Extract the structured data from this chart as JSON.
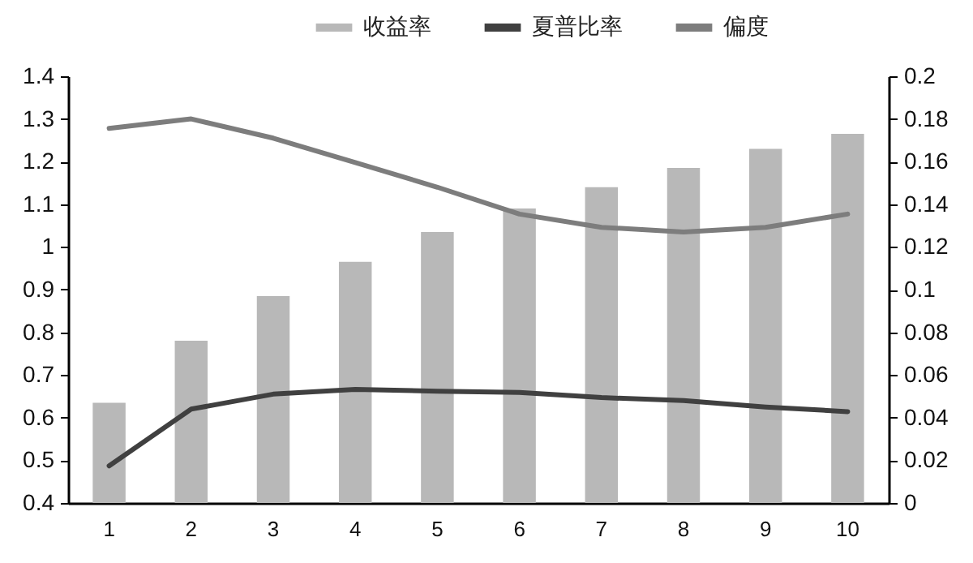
{
  "chart_data": {
    "type": "bar",
    "categories": [
      "1",
      "2",
      "3",
      "4",
      "5",
      "6",
      "7",
      "8",
      "9",
      "10"
    ],
    "series": [
      {
        "name": "收益率",
        "axis": "y2",
        "color": "#b8b8b8",
        "values": [
          0.047,
          0.076,
          0.097,
          0.113,
          0.127,
          0.138,
          0.148,
          0.157,
          0.166,
          0.173
        ]
      },
      {
        "name": "夏普比率",
        "type": "line",
        "color": "#404040",
        "values": [
          0.487,
          0.62,
          0.655,
          0.666,
          0.662,
          0.659,
          0.647,
          0.64,
          0.625,
          0.614
        ]
      },
      {
        "name": "偏度",
        "type": "line",
        "color": "#7d7d7d",
        "values": [
          1.278,
          1.3,
          1.255,
          1.198,
          1.14,
          1.077,
          1.046,
          1.035,
          1.046,
          1.077
        ]
      }
    ],
    "ylim": [
      0.4,
      1.4
    ],
    "yticks": [
      0.4,
      0.5,
      0.6,
      0.7,
      0.8,
      0.9,
      1,
      1.1,
      1.2,
      1.3,
      1.4
    ],
    "y2lim": [
      0,
      0.2
    ],
    "y2ticks": [
      0,
      0.02,
      0.04,
      0.06,
      0.08,
      0.1,
      0.12,
      0.14,
      0.16,
      0.18,
      0.2
    ],
    "legend": "top",
    "grid": false,
    "marker": "none",
    "line_style": "solid"
  }
}
